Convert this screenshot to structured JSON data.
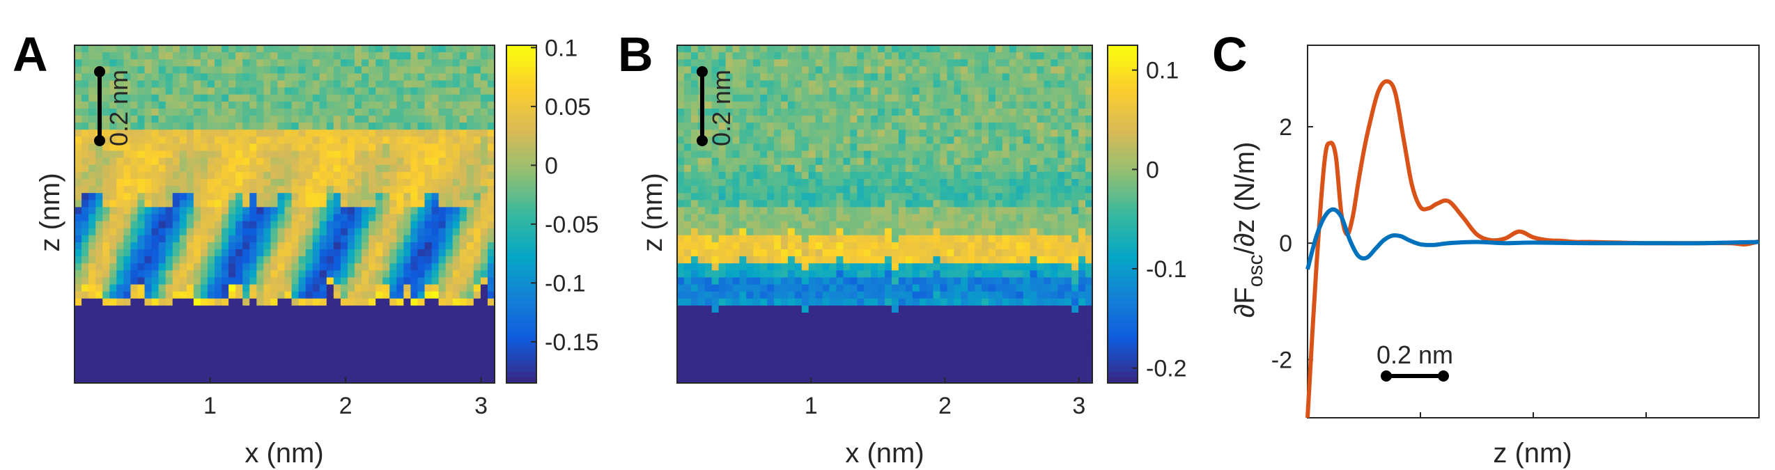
{
  "chart_data": [
    {
      "type": "heatmap",
      "panel": "A",
      "xlabel": "x (nm)",
      "ylabel": "z (nm)",
      "xticks": [
        "1",
        "2",
        "3"
      ],
      "xlim": [
        0,
        3.1
      ],
      "scalebar_label": "0.2 nm",
      "colorbar": {
        "ticks": [
          "0.1",
          "0.05",
          "0",
          "-0.05",
          "-0.1",
          "-0.15"
        ],
        "tick_values": [
          0.1,
          0.05,
          0,
          -0.05,
          -0.1,
          -0.15
        ],
        "range": [
          -0.185,
          0.102
        ]
      },
      "pattern": "stripes",
      "colormap": "parula"
    },
    {
      "type": "heatmap",
      "panel": "B",
      "xlabel": "x (nm)",
      "ylabel": "z (nm)",
      "xticks": [
        "1",
        "2",
        "3"
      ],
      "xlim": [
        0,
        3.1
      ],
      "scalebar_label": "0.2 nm",
      "colorbar": {
        "ticks": [
          "0.1",
          "0",
          "-0.1",
          "-0.2"
        ],
        "tick_values": [
          0.1,
          0,
          -0.1,
          -0.2
        ],
        "range": [
          -0.215,
          0.125
        ]
      },
      "pattern": "layers",
      "colormap": "parula"
    },
    {
      "type": "line",
      "panel": "C",
      "xlabel": "z (nm)",
      "ylabel_parts": [
        "∂F",
        "osc",
        "/∂z (N/m)"
      ],
      "yticks": [
        "2",
        "0",
        "-2"
      ],
      "ylim": [
        -3,
        3.4
      ],
      "xlim": [
        0,
        1.6
      ],
      "scalebar_label": "0.2 nm",
      "series": [
        {
          "color": "#D95319",
          "x": [
            0.0,
            0.03,
            0.06,
            0.08,
            0.1,
            0.12,
            0.14,
            0.16,
            0.18,
            0.2,
            0.22,
            0.25,
            0.28,
            0.31,
            0.34,
            0.37,
            0.4,
            0.43,
            0.46,
            0.5,
            0.55,
            0.6,
            0.65,
            0.7,
            0.75,
            0.8,
            0.85,
            0.9,
            0.95,
            1.0,
            1.1,
            1.2,
            1.3,
            1.4,
            1.5,
            1.55,
            1.6
          ],
          "y": [
            -3.0,
            -0.5,
            1.4,
            1.72,
            1.5,
            0.5,
            0.15,
            0.45,
            1.05,
            1.6,
            2.05,
            2.6,
            2.78,
            2.6,
            1.8,
            1.0,
            0.62,
            0.6,
            0.68,
            0.72,
            0.45,
            0.15,
            0.05,
            0.08,
            0.2,
            0.1,
            0.05,
            0.04,
            0.02,
            0.02,
            0.01,
            0.0,
            0.0,
            0.0,
            0.0,
            -0.02,
            0.03
          ]
        },
        {
          "color": "#0072BD",
          "x": [
            0.0,
            0.03,
            0.06,
            0.09,
            0.12,
            0.15,
            0.18,
            0.21,
            0.24,
            0.27,
            0.3,
            0.33,
            0.36,
            0.4,
            0.45,
            0.5,
            0.6,
            0.7,
            0.8,
            1.0,
            1.2,
            1.4,
            1.6
          ],
          "y": [
            -0.45,
            0.1,
            0.45,
            0.58,
            0.45,
            0.05,
            -0.22,
            -0.25,
            -0.1,
            0.05,
            0.13,
            0.12,
            0.05,
            -0.02,
            -0.03,
            0.0,
            0.02,
            0.0,
            0.01,
            0.0,
            0.0,
            0.0,
            0.02
          ]
        }
      ]
    }
  ]
}
